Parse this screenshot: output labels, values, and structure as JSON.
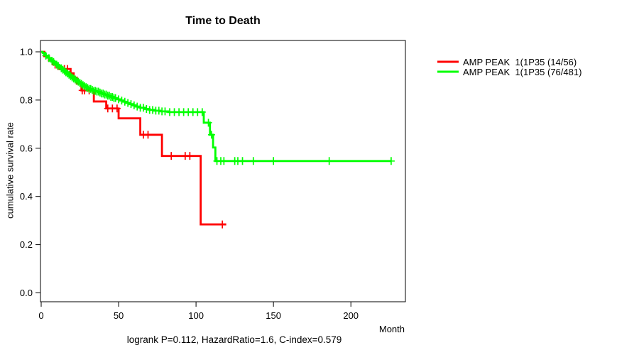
{
  "chart_data": {
    "type": "line",
    "subtype": "kaplan-meier-step",
    "title": "Time to Death",
    "xlabel": "Month",
    "ylabel": "cumulative survival rate",
    "footer": "logrank P=0.112, HazardRatio=1.6, C-index=0.579",
    "xlim": [
      0,
      235
    ],
    "ylim": [
      0,
      1.04
    ],
    "x_ticks": [
      0,
      50,
      100,
      150,
      200
    ],
    "y_ticks": [
      0.0,
      0.2,
      0.4,
      0.6,
      0.8,
      1.0
    ],
    "grid": false,
    "legend_position": "right-outside",
    "legend": [
      {
        "label": "AMP PEAK  1(1P35 (14/56)",
        "color": "#ff0000"
      },
      {
        "label": "AMP PEAK  1(1P35 (76/481)",
        "color": "#00ff00"
      }
    ],
    "series": [
      {
        "name": "AMP PEAK  1(1P35 (14/56)",
        "color": "#ff0000",
        "end_month": 119.5,
        "steps": [
          [
            0,
            1.0
          ],
          [
            2,
            0.982
          ],
          [
            5,
            0.964
          ],
          [
            8,
            0.947
          ],
          [
            11,
            0.929
          ],
          [
            19,
            0.911
          ],
          [
            21,
            0.893
          ],
          [
            23,
            0.868
          ],
          [
            26,
            0.84
          ],
          [
            34,
            0.794
          ],
          [
            42,
            0.765
          ],
          [
            50,
            0.724
          ],
          [
            64,
            0.656
          ],
          [
            78,
            0.568
          ],
          [
            103,
            0.284
          ]
        ],
        "censor_months": [
          9,
          15,
          17,
          26.5,
          28,
          31,
          43,
          46,
          49,
          66,
          69,
          84,
          93,
          96,
          117
        ]
      },
      {
        "name": "AMP PEAK  1(1P35 (76/481)",
        "color": "#00ff00",
        "end_month": 226,
        "steps": [
          [
            0,
            1.0
          ],
          [
            1,
            0.995
          ],
          [
            2,
            0.99
          ],
          [
            3,
            0.984
          ],
          [
            4,
            0.979
          ],
          [
            5,
            0.974
          ],
          [
            6,
            0.968
          ],
          [
            7,
            0.963
          ],
          [
            8,
            0.958
          ],
          [
            9,
            0.953
          ],
          [
            10,
            0.947
          ],
          [
            11,
            0.942
          ],
          [
            12,
            0.937
          ],
          [
            13,
            0.932
          ],
          [
            14,
            0.926
          ],
          [
            15,
            0.921
          ],
          [
            16,
            0.915
          ],
          [
            17,
            0.91
          ],
          [
            18,
            0.905
          ],
          [
            19,
            0.899
          ],
          [
            20,
            0.894
          ],
          [
            21,
            0.889
          ],
          [
            22,
            0.885
          ],
          [
            23,
            0.88
          ],
          [
            24,
            0.876
          ],
          [
            25,
            0.871
          ],
          [
            26,
            0.867
          ],
          [
            27,
            0.862
          ],
          [
            28,
            0.858
          ],
          [
            29,
            0.854
          ],
          [
            30,
            0.85
          ],
          [
            31,
            0.846
          ],
          [
            33,
            0.842
          ],
          [
            34,
            0.838
          ],
          [
            36,
            0.835
          ],
          [
            38,
            0.831
          ],
          [
            39,
            0.827
          ],
          [
            41,
            0.823
          ],
          [
            43,
            0.818
          ],
          [
            45,
            0.813
          ],
          [
            47,
            0.808
          ],
          [
            49,
            0.803
          ],
          [
            51,
            0.798
          ],
          [
            53,
            0.793
          ],
          [
            55,
            0.788
          ],
          [
            57,
            0.783
          ],
          [
            59,
            0.778
          ],
          [
            61,
            0.773
          ],
          [
            64,
            0.768
          ],
          [
            67,
            0.763
          ],
          [
            70,
            0.759
          ],
          [
            73,
            0.756
          ],
          [
            77,
            0.753
          ],
          [
            82,
            0.75
          ],
          [
            105,
            0.706
          ],
          [
            109,
            0.656
          ],
          [
            111,
            0.603
          ],
          [
            112.5,
            0.547
          ]
        ],
        "censor_months": [
          3,
          5,
          7,
          8,
          10,
          11,
          13,
          14,
          15,
          16,
          17,
          18,
          19,
          20,
          21,
          22,
          23,
          24,
          25,
          26,
          27,
          28,
          29,
          30,
          31,
          32,
          33,
          34,
          35,
          36,
          37,
          38,
          39,
          40,
          41,
          42,
          43,
          44,
          45,
          46,
          47,
          48,
          50,
          52,
          54,
          56,
          58,
          60,
          62,
          64,
          66,
          68,
          70,
          72,
          74,
          76,
          78,
          80,
          83,
          86,
          89,
          92,
          95,
          98,
          101,
          104,
          108,
          110,
          113.5,
          116,
          118,
          125,
          127,
          130,
          137,
          150,
          186,
          226
        ]
      }
    ]
  }
}
